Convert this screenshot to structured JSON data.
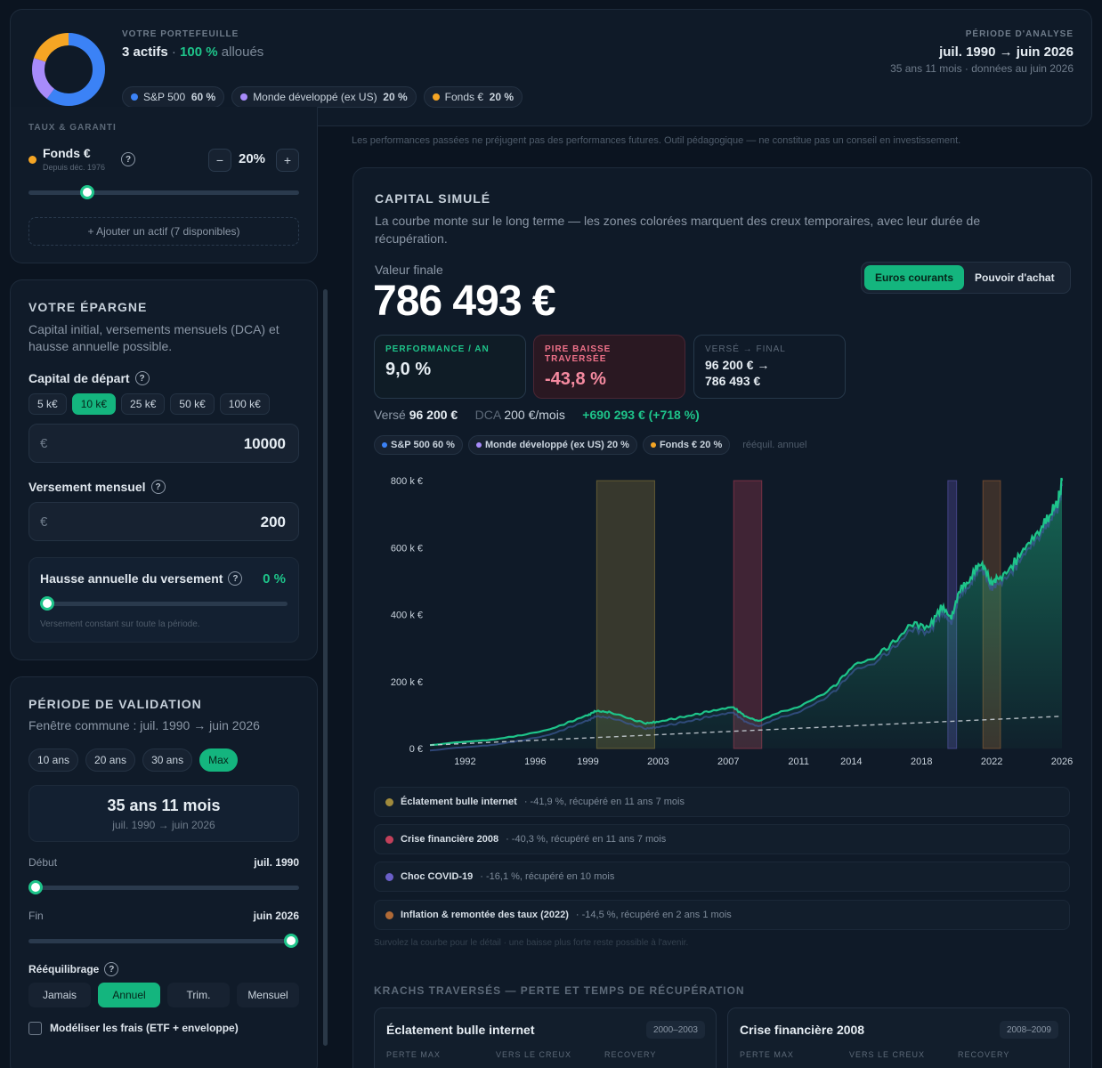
{
  "header": {
    "portfolio_label": "VOTRE PORTEFEUILLE",
    "assets_count": "3 actifs",
    "separator": "·",
    "allocated_pct": "100 %",
    "allocated_word": "alloués",
    "chips": [
      {
        "name": "S&P 500",
        "pct": "60 %",
        "color": "#3b82f6"
      },
      {
        "name": "Monde développé (ex US)",
        "pct": "20 %",
        "color": "#a78bfa"
      },
      {
        "name": "Fonds €",
        "pct": "20 %",
        "color": "#f5a524"
      }
    ],
    "period_label": "PÉRIODE D'ANALYSE",
    "period_range": "juil. 1990 → juin 2026",
    "period_sub": "35 ans 11 mois · données au juin 2026"
  },
  "disclaimer": "Les performances passées ne préjugent pas des performances futures. Outil pédagogique — ne constitue pas un conseil en investissement.",
  "asset_panel": {
    "group_label": "TAUX & GARANTI",
    "asset_name": "Fonds €",
    "asset_since": "Depuis déc. 1976",
    "asset_pct": "20%",
    "minus": "−",
    "plus": "+",
    "add_asset": "+ Ajouter un actif (7 disponibles)",
    "color": "#f5a524"
  },
  "savings": {
    "title": "VOTRE ÉPARGNE",
    "desc": "Capital initial, versements mensuels (DCA) et hausse annuelle possible.",
    "capital_label": "Capital de départ",
    "capital_presets": [
      "5 k€",
      "10 k€",
      "25 k€",
      "50 k€",
      "100 k€"
    ],
    "capital_selected": 1,
    "currency": "€",
    "capital_value": "10000",
    "monthly_label": "Versement mensuel",
    "monthly_value": "200",
    "increase_label": "Hausse annuelle du versement",
    "increase_value": "0 %",
    "increase_level": 0,
    "increase_hint": "Versement constant sur toute la période."
  },
  "validation": {
    "title": "PÉRIODE DE VALIDATION",
    "window": "Fenêtre commune : juil. 1990 → juin 2026",
    "presets": [
      "10 ans",
      "20 ans",
      "30 ans",
      "Max"
    ],
    "preset_selected": 3,
    "duration": "35 ans 11 mois",
    "duration_sub": "juil. 1990 → juin 2026",
    "start_label": "Début",
    "start_value": "juil. 1990",
    "start_level": 0,
    "end_label": "Fin",
    "end_value": "juin 2026",
    "end_level": 1,
    "rebalance_label": "Rééquilibrage",
    "rebalance_options": [
      "Jamais",
      "Annuel",
      "Trim.",
      "Mensuel"
    ],
    "rebalance_selected": 1,
    "fees_label": "Modéliser les frais (ETF + enveloppe)"
  },
  "capital": {
    "title": "CAPITAL SIMULÉ",
    "desc": "La courbe monte sur le long terme — les zones colorées marquent des creux temporaires, avec leur durée de récupération.",
    "final_label": "Valeur finale",
    "final_value": "786 493 €",
    "toggle": [
      "Euros courants",
      "Pouvoir d'achat"
    ],
    "toggle_selected": 0,
    "stats": [
      {
        "label": "PERFORMANCE / AN",
        "value": "9,0 %"
      },
      {
        "label": "PIRE BAISSE TRAVERSÉE",
        "value": "-43,8 %"
      },
      {
        "label": "VERSÉ → FINAL",
        "value": "96 200 € →",
        "value2": "786 493 €"
      }
    ],
    "summary_verse_label": "Versé",
    "summary_verse": "96 200 €",
    "summary_dca_label": "DCA",
    "summary_dca": "200 €/mois",
    "summary_gain": "+690 293 € (+718 %)",
    "legend": [
      {
        "name": "S&P 500 60 %",
        "color": "#3b82f6"
      },
      {
        "name": "Monde développé (ex US) 20 %",
        "color": "#a78bfa"
      },
      {
        "name": "Fonds € 20 %",
        "color": "#f5a524"
      }
    ],
    "legend_note": "rééquil. annuel",
    "events": [
      {
        "name": "Éclatement bulle internet",
        "detail": "· -41,9 %, récupéré en 11 ans 7 mois",
        "color": "#a08a3c"
      },
      {
        "name": "Crise financière 2008",
        "detail": "· -40,3 %, récupéré en 11 ans 7 mois",
        "color": "#c2405a"
      },
      {
        "name": "Choc COVID-19",
        "detail": "· -16,1 %, récupéré en 10 mois",
        "color": "#6a5fc8"
      },
      {
        "name": "Inflation & remontée des taux (2022)",
        "detail": "· -14,5 %, récupéré en 2 ans 1 mois",
        "color": "#b06a36"
      }
    ],
    "hover_hint": "Survolez la courbe pour le détail · une baisse plus forte reste possible à l'avenir."
  },
  "crashes": {
    "title": "KRACHS TRAVERSÉS — PERTE ET TEMPS DE RÉCUPÉRATION",
    "cards": [
      {
        "name": "Éclatement bulle internet",
        "years": "2000–2003",
        "cols": [
          "PERTE MAX",
          "VERS LE CREUX",
          "RECOVERY"
        ]
      },
      {
        "name": "Crise financière 2008",
        "years": "2008–2009",
        "cols": [
          "PERTE MAX",
          "VERS LE CREUX",
          "RECOVERY"
        ]
      }
    ]
  },
  "chart_data": {
    "type": "area",
    "x_ticks": [
      "1992",
      "1996",
      "1999",
      "2003",
      "2007",
      "2011",
      "2014",
      "2018",
      "2022",
      "2026"
    ],
    "y_ticks": [
      "800 k €",
      "600 k €",
      "400 k €",
      "200 k €",
      "0 €"
    ],
    "ylim": [
      0,
      800000
    ],
    "xlim": [
      1990.5,
      2026.5
    ],
    "series": [
      {
        "name": "Capital",
        "color": "#1ec48a",
        "x": [
          1990.5,
          1992,
          1994,
          1996,
          1997.5,
          1998.5,
          1999.5,
          2000.0,
          2000.7,
          2001.8,
          2002.8,
          2003.5,
          2004.5,
          2005.5,
          2006.5,
          2007.8,
          2008.5,
          2009.2,
          2010.5,
          2012,
          2013.5,
          2014.5,
          2016,
          2017,
          2018,
          2018.9,
          2019.6,
          2020.2,
          2020.7,
          2021.3,
          2021.9,
          2022.4,
          2022.9,
          2023.6,
          2024.4,
          2025.2,
          2025.8,
          2026.3,
          2026.5
        ],
        "y": [
          10000,
          18000,
          26000,
          42000,
          60000,
          80000,
          100000,
          112000,
          108000,
          90000,
          75000,
          80000,
          90000,
          100000,
          112000,
          122000,
          95000,
          82000,
          108000,
          135000,
          185000,
          240000,
          280000,
          320000,
          375000,
          360000,
          420000,
          395000,
          470000,
          510000,
          555000,
          500000,
          505000,
          540000,
          600000,
          650000,
          690000,
          740000,
          800000
        ]
      },
      {
        "name": "Versé",
        "color": "#cfd6dd",
        "x": [
          1990.5,
          2026.5
        ],
        "y": [
          10000,
          96200
        ]
      }
    ],
    "zones": [
      {
        "from": 2000.0,
        "to": 2003.3,
        "color": "#a08a3c"
      },
      {
        "from": 2007.8,
        "to": 2009.4,
        "color": "#c2405a"
      },
      {
        "from": 2020.0,
        "to": 2020.5,
        "color": "#6a5fc8"
      },
      {
        "from": 2022.0,
        "to": 2023.0,
        "color": "#b06a36"
      }
    ]
  }
}
